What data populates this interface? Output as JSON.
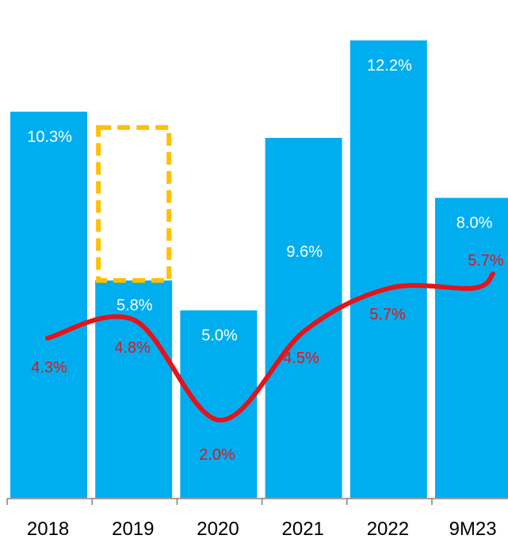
{
  "chart_data": {
    "type": "bar",
    "title": "",
    "xlabel": "",
    "ylabel": "",
    "categories": [
      "2018",
      "2019",
      "2020",
      "2021",
      "2022",
      "9M23"
    ],
    "series": [
      {
        "type": "bar",
        "values": [
          10.3,
          5.8,
          5.0,
          9.6,
          12.2,
          8.0
        ],
        "labels": [
          "10.3%",
          "5.8%",
          "5.0%",
          "9.6%",
          "12.2%",
          "8.0%"
        ],
        "color": "#00aeef"
      },
      {
        "type": "line",
        "values": [
          4.3,
          4.8,
          2.0,
          4.5,
          5.7,
          5.7
        ],
        "labels": [
          "4.3%",
          "4.8%",
          "2.0%",
          "4.5%",
          "5.7%",
          "5.7%"
        ],
        "color": "#e5131b"
      }
    ],
    "annotation": {
      "type": "dashed-box",
      "category": "2019",
      "from_value": 5.8,
      "to_value": 10.3,
      "color": "#ffc000"
    },
    "ylim": [
      0,
      12.2
    ],
    "grid": false,
    "legend": "none"
  }
}
